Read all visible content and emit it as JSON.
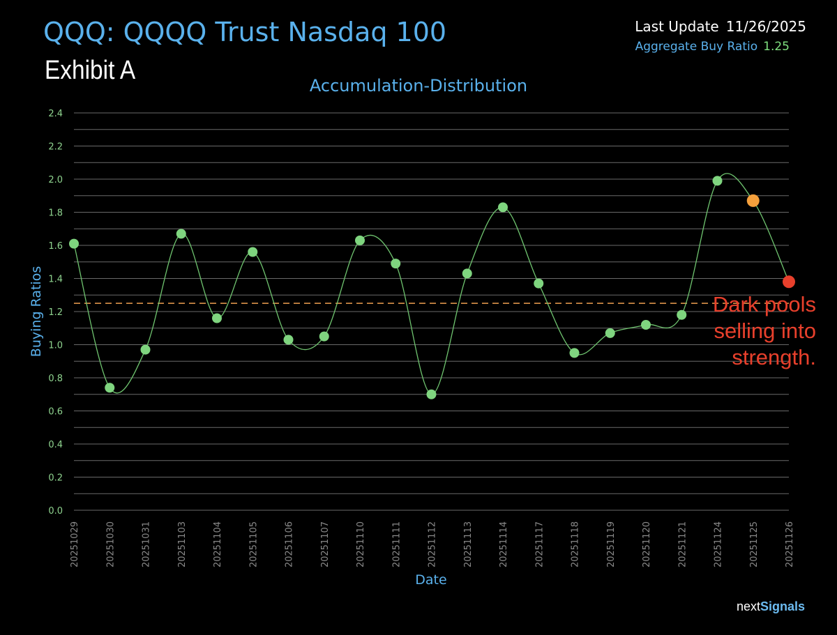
{
  "header": {
    "title": "QQQ:  QQQQ Trust Nasdaq 100",
    "subtitle": "Exhibit A",
    "last_update_label": "Last Update",
    "last_update_value": "11/26/2025",
    "aggregate_label": "Aggregate Buy Ratio",
    "aggregate_value": "1.25"
  },
  "brand": {
    "part1": "next",
    "part2": "Signals"
  },
  "colors": {
    "title": "#5ab1ec",
    "point_green": "#7fd57f",
    "point_orange": "#f5a03c",
    "point_red": "#e8402c",
    "line": "#6fc46f",
    "reference": "#f0a050",
    "annotation": "#e8402c",
    "grid": "#6a6a6a",
    "tick": "#8fd48f",
    "axis_title": "#5ab1ec"
  },
  "chart_data": {
    "type": "line",
    "title": "Accumulation-Distribution",
    "xlabel": "Date",
    "ylabel": "Buying Ratios",
    "ylim": [
      0,
      2.4
    ],
    "yticks": [
      0.0,
      0.2,
      0.4,
      0.6,
      0.8,
      1.0,
      1.2,
      1.4,
      1.6,
      1.8,
      2.0,
      2.2,
      2.4
    ],
    "grid": true,
    "categories": [
      "20251029",
      "20251030",
      "20251031",
      "20251103",
      "20251104",
      "20251105",
      "20251106",
      "20251107",
      "20251110",
      "20251111",
      "20251112",
      "20251113",
      "20251114",
      "20251117",
      "20251118",
      "20251119",
      "20251120",
      "20251121",
      "20251124",
      "20251125",
      "20251126"
    ],
    "series": [
      {
        "name": "Buying Ratio",
        "values": [
          1.61,
          0.74,
          0.97,
          1.67,
          1.16,
          1.56,
          1.03,
          1.05,
          1.63,
          1.49,
          0.7,
          1.43,
          1.83,
          1.37,
          0.95,
          1.07,
          1.12,
          1.18,
          1.99,
          1.87,
          1.38
        ],
        "point_colors": [
          "green",
          "green",
          "green",
          "green",
          "green",
          "green",
          "green",
          "green",
          "green",
          "green",
          "green",
          "green",
          "green",
          "green",
          "green",
          "green",
          "green",
          "green",
          "green",
          "orange",
          "red"
        ]
      }
    ],
    "reference_line": {
      "value": 1.25
    },
    "annotation": {
      "lines": [
        "Dark pools",
        "selling into",
        "strength."
      ],
      "at_value": 1.2
    }
  }
}
